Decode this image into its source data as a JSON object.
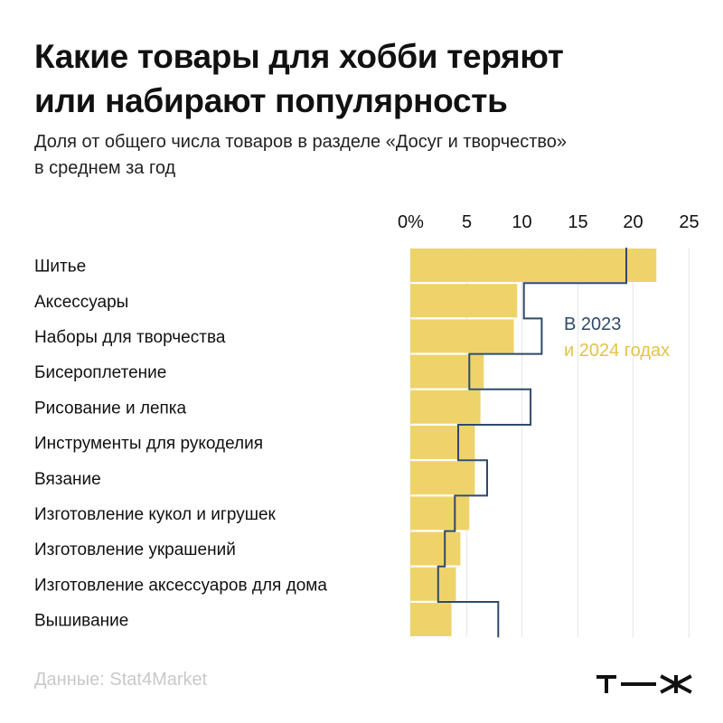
{
  "header": {
    "title_line1": "Какие товары для хобби теряют",
    "title_line2": "или набирают популярность",
    "subtitle_line1": "Доля от общего числа товаров в разделе «Досуг и творчество»",
    "subtitle_line2": "в среднем за год"
  },
  "footer": {
    "source": "Данные: Stat4Market",
    "brand_logo_text": "т—ж"
  },
  "colors": {
    "bar_2024": "#EED36A",
    "line_2023": "#2E4A6B",
    "label_2024": "#E4C24A",
    "grid": "#E9E9E9",
    "text": "#111111",
    "muted": "#C9C9C9"
  },
  "chart_data": {
    "type": "bar",
    "orientation": "horizontal",
    "title": "Какие товары для хобби теряют или набирают популярность",
    "subtitle": "Доля от общего числа товаров в разделе «Досуг и творчество» в среднем за год",
    "xlabel": "",
    "ylabel": "",
    "x_ticks": [
      "0%",
      "5",
      "10",
      "15",
      "20",
      "25"
    ],
    "xlim": [
      0,
      25
    ],
    "grid": true,
    "legend_placement": "inline-right",
    "annotation_line1": "В 2023",
    "annotation_line2": "и 2024 годах",
    "categories": [
      "Шитье",
      "Аксессуары",
      "Наборы для творчества",
      "Бисероплетение",
      "Рисование и лепка",
      "Инструменты для рукоделия",
      "Вязание",
      "Изготовление кукол и игрушек",
      "Изготовление украшений",
      "Изготовление аксессуаров для дома",
      "Вышивание"
    ],
    "series": [
      {
        "name": "2024",
        "kind": "bar",
        "values": [
          22.1,
          9.6,
          9.3,
          6.6,
          6.3,
          5.8,
          5.8,
          5.3,
          4.5,
          4.1,
          3.7
        ]
      },
      {
        "name": "2023",
        "kind": "step-line",
        "values": [
          19.4,
          10.2,
          11.8,
          5.3,
          10.8,
          4.3,
          6.9,
          4.0,
          3.1,
          2.5,
          7.9
        ]
      }
    ]
  }
}
